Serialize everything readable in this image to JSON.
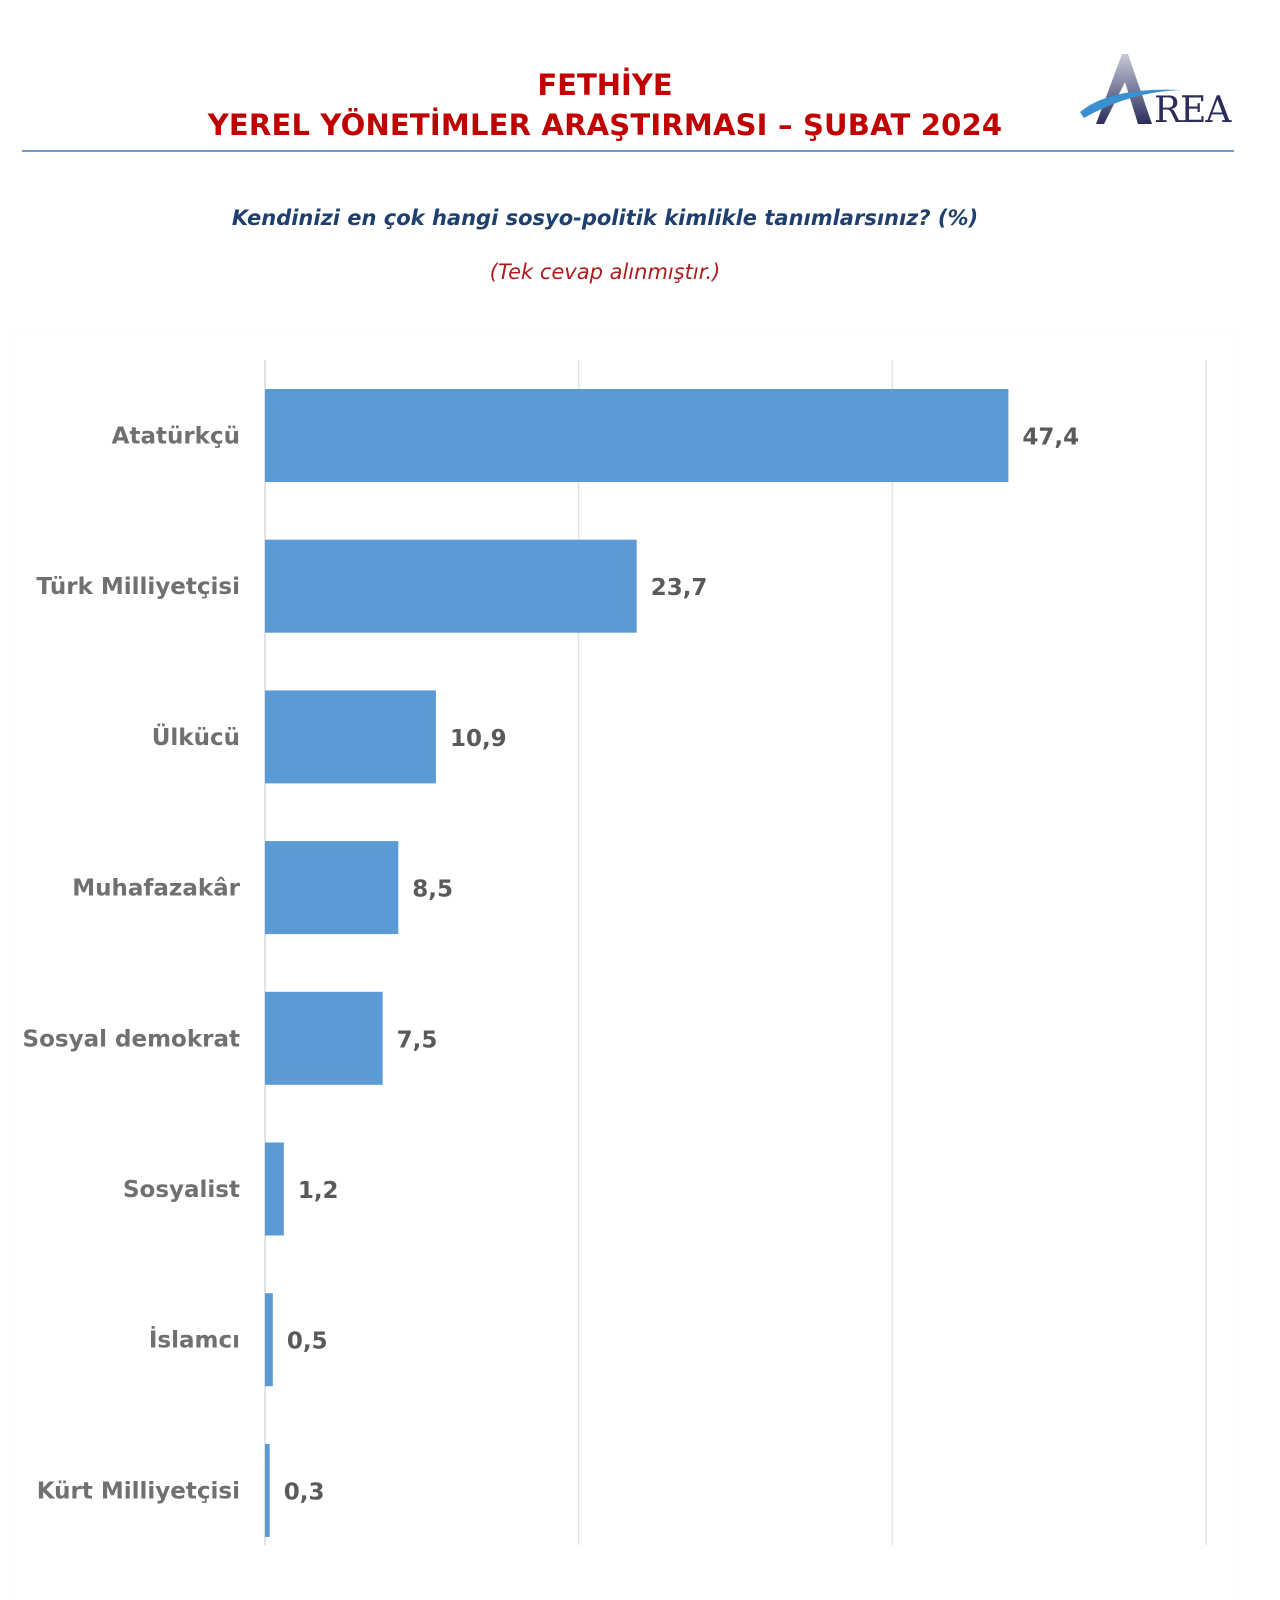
{
  "header": {
    "title_line1": "FETHİYE",
    "title_line2": "YEREL YÖNETİMLER ARAŞTIRMASI – ŞUBAT 2024",
    "logo_text": "REA",
    "logo_icon": "area-logo-icon",
    "title_color": "#c00000"
  },
  "question": "Kendinizi en çok hangi sosyo-politik kimlikle tanımlarsınız? (%)",
  "note": "(Tek cevap alınmıştır.)",
  "chart_data": {
    "type": "bar",
    "orientation": "horizontal",
    "title": "Kendinizi en çok hangi sosyo-politik kimlikle tanımlarsınız? (%)",
    "subtitle": "(Tek cevap alınmıştır.)",
    "xlabel": "",
    "ylabel": "",
    "categories": [
      "Atatürkçü",
      "Türk Milliyetçisi",
      "Ülkücü",
      "Muhafazakâr",
      "Sosyal demokrat",
      "Sosyalist",
      "İslamcı",
      "Kürt Milliyetçisi"
    ],
    "values": [
      47.4,
      23.7,
      10.9,
      8.5,
      7.5,
      1.2,
      0.5,
      0.3
    ],
    "value_labels": [
      "47,4",
      "23,7",
      "10,9",
      "8,5",
      "7,5",
      "1,2",
      "0,5",
      "0,3"
    ],
    "xlim": [
      0,
      60
    ],
    "gridlines": [
      0,
      20,
      40,
      60
    ],
    "grid": true,
    "legend": "none",
    "bar_color": "#5b9bd5"
  }
}
